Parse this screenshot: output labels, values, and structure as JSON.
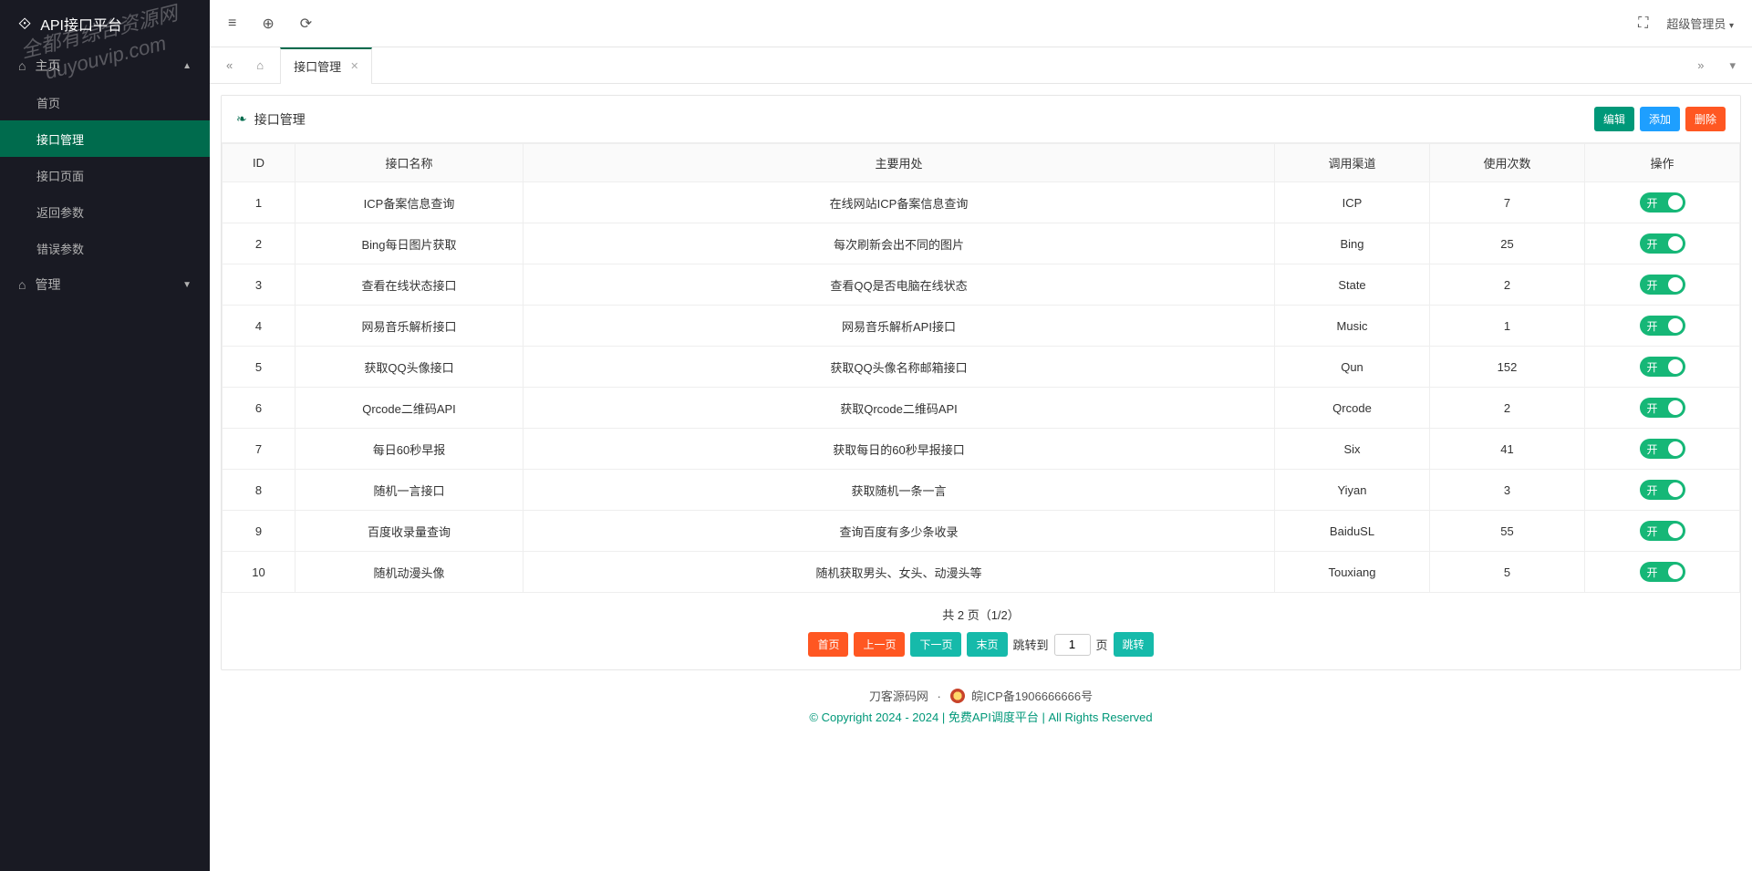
{
  "brand": {
    "title": "API接口平台"
  },
  "sidebar": {
    "group_main": "主页",
    "group_manage": "管理",
    "items": [
      {
        "label": "首页"
      },
      {
        "label": "接口管理"
      },
      {
        "label": "接口页面"
      },
      {
        "label": "返回参数"
      },
      {
        "label": "错误参数"
      }
    ]
  },
  "topbar": {
    "user": "超级管理员"
  },
  "tabs": {
    "active": "接口管理"
  },
  "card": {
    "title": "接口管理"
  },
  "actions": {
    "edit": "编辑",
    "add": "添加",
    "delete": "删除"
  },
  "table": {
    "headers": {
      "id": "ID",
      "name": "接口名称",
      "purpose": "主要用处",
      "channel": "调用渠道",
      "count": "使用次数",
      "op": "操作"
    },
    "rows": [
      {
        "id": "1",
        "name": "ICP备案信息查询",
        "purpose": "在线网站ICP备案信息查询",
        "channel": "ICP",
        "count": "7"
      },
      {
        "id": "2",
        "name": "Bing每日图片获取",
        "purpose": "每次刷新会出不同的图片",
        "channel": "Bing",
        "count": "25"
      },
      {
        "id": "3",
        "name": "查看在线状态接口",
        "purpose": "查看QQ是否电脑在线状态",
        "channel": "State",
        "count": "2"
      },
      {
        "id": "4",
        "name": "网易音乐解析接口",
        "purpose": "网易音乐解析API接口",
        "channel": "Music",
        "count": "1"
      },
      {
        "id": "5",
        "name": "获取QQ头像接口",
        "purpose": "获取QQ头像名称邮箱接口",
        "channel": "Qun",
        "count": "152"
      },
      {
        "id": "6",
        "name": "Qrcode二维码API",
        "purpose": "获取Qrcode二维码API",
        "channel": "Qrcode",
        "count": "2"
      },
      {
        "id": "7",
        "name": "每日60秒早报",
        "purpose": "获取每日的60秒早报接口",
        "channel": "Six",
        "count": "41"
      },
      {
        "id": "8",
        "name": "随机一言接口",
        "purpose": "获取随机一条一言",
        "channel": "Yiyan",
        "count": "3"
      },
      {
        "id": "9",
        "name": "百度收录量查询",
        "purpose": "查询百度有多少条收录",
        "channel": "BaiduSL",
        "count": "55"
      },
      {
        "id": "10",
        "name": "随机动漫头像",
        "purpose": "随机获取男头、女头、动漫头等",
        "channel": "Touxiang",
        "count": "5"
      }
    ],
    "toggle_on_label": "开"
  },
  "pagination": {
    "info": "共 2 页（1/2）",
    "first": "首页",
    "prev": "上一页",
    "next": "下一页",
    "last": "末页",
    "jump_prefix": "跳转到",
    "jump_suffix": "页",
    "jump_btn": "跳转",
    "current": "1"
  },
  "footer": {
    "site": "刀客源码网",
    "icp": "皖ICP备1906666666号",
    "copyright": "© Copyright 2024 - 2024",
    "platform": "免费API调度平台",
    "rights": "All Rights Reserved"
  },
  "watermark": {
    "line1": "全都有综合资源网",
    "line2": "duyouvip.com"
  },
  "colors": {
    "sidebar_bg": "#191a23",
    "accent": "#006b4d",
    "btn_green": "#009879",
    "btn_blue": "#1e9fff",
    "btn_orange": "#ff5722",
    "toggle_on": "#16b777"
  }
}
